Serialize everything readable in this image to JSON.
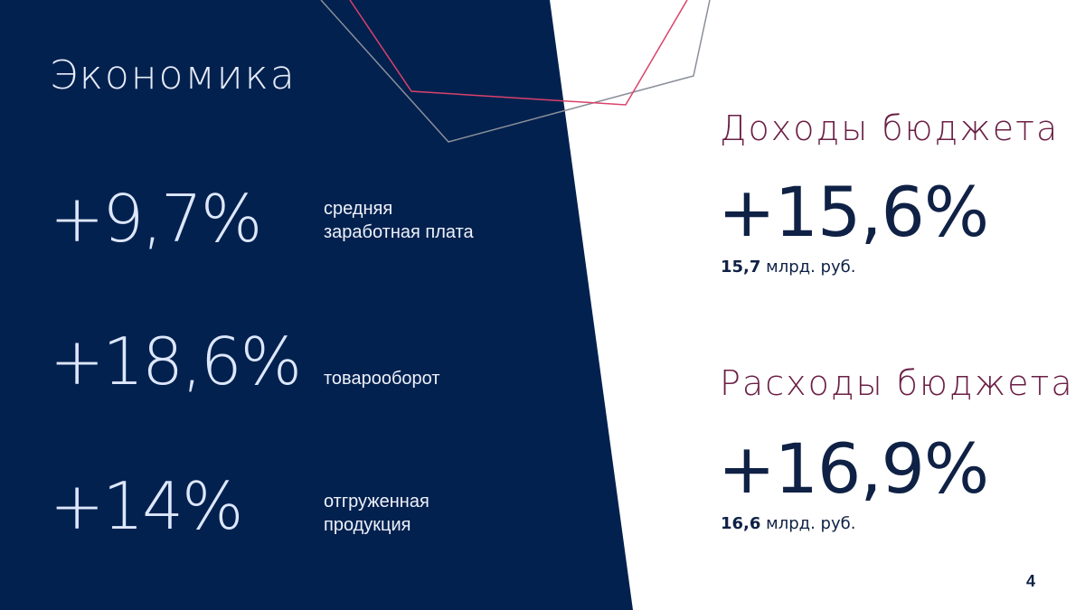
{
  "colors": {
    "panel": "#03214f",
    "accent_line": "#d9426b",
    "grey_line": "#8a8f99",
    "right_title": "#6b1f45",
    "right_value": "#0f2145"
  },
  "left": {
    "title": "Экономика",
    "stats": [
      {
        "value": "+9,7%",
        "label_1": "средняя",
        "label_2": "заработная плата"
      },
      {
        "value": "+18,6%",
        "label_1": "товарооборот",
        "label_2": ""
      },
      {
        "value": "+14%",
        "label_1": "отгруженная",
        "label_2": "продукция"
      }
    ]
  },
  "right": {
    "income": {
      "title": "Доходы бюджета",
      "value": "+15,6%",
      "amount": "15,7",
      "unit": "млрд. руб."
    },
    "expense": {
      "title": "Расходы бюджета",
      "value": "+16,9%",
      "amount": "16,6",
      "unit": "млрд. руб."
    }
  },
  "page_number": "4"
}
